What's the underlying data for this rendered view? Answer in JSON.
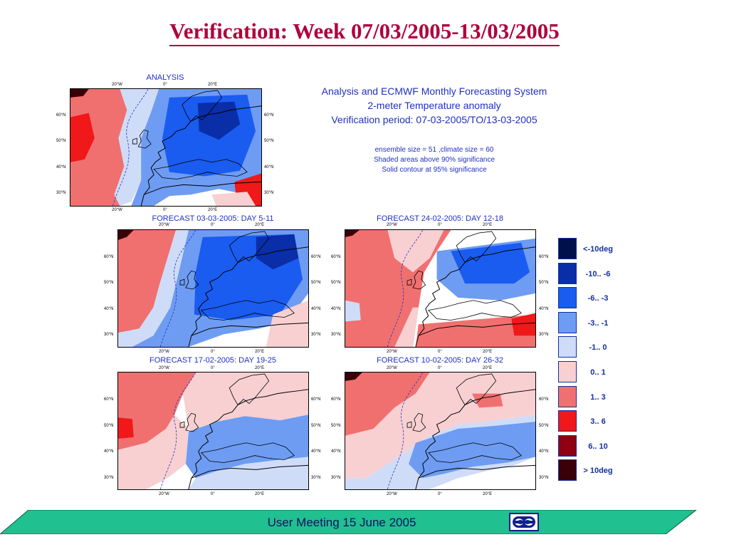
{
  "slide": {
    "title": "Verification: Week 07/03/2005-13/03/2005"
  },
  "maps": [
    {
      "id": "analysis",
      "title": "ANALYSIS",
      "variant": 0
    },
    {
      "id": "day5",
      "title": "FORECAST 03-03-2005: DAY 5-11",
      "variant": 1
    },
    {
      "id": "day12",
      "title": "FORECAST 24-02-2005: DAY 12-18",
      "variant": 2
    },
    {
      "id": "day19",
      "title": "FORECAST 17-02-2005: DAY 19-25",
      "variant": 3
    },
    {
      "id": "day26",
      "title": "FORECAST 10-02-2005: DAY 26-32",
      "variant": 4
    }
  ],
  "axis_labels": {
    "lon": [
      "20°W",
      "0°",
      "20°E"
    ],
    "lat": [
      "60°N",
      "50°N",
      "40°N",
      "30°N"
    ]
  },
  "info": {
    "line1": "Analysis and ECMWF Monthly Forecasting System",
    "line2": "2-meter Temperature anomaly",
    "line3": "Verification period: 07-03-2005/TO/13-03-2005",
    "line4": "ensemble size = 51  ,climate size = 60",
    "line5": "Shaded areas above 90% significance",
    "line6": "Solid contour at 95% significance"
  },
  "legend": [
    {
      "label": "<-10deg",
      "color": "#00104a"
    },
    {
      "label": "-10.. -6",
      "color": "#0a2ea8"
    },
    {
      "label": "-6.. -3",
      "color": "#1a5cf0"
    },
    {
      "label": "-3.. -1",
      "color": "#6e9cf2"
    },
    {
      "label": "-1..  0",
      "color": "#cfdcf8"
    },
    {
      "label": "0..  1",
      "color": "#f8d0d2"
    },
    {
      "label": "1..  3",
      "color": "#f07070"
    },
    {
      "label": "3..  6",
      "color": "#f01818"
    },
    {
      "label": "6.. 10",
      "color": "#900010"
    },
    {
      "label": ">  10deg",
      "color": "#3a0008"
    }
  ],
  "footer": {
    "text": "User Meeting 15 June 2005",
    "band_color": "#20c090",
    "logo": "ecmwf-logo"
  }
}
